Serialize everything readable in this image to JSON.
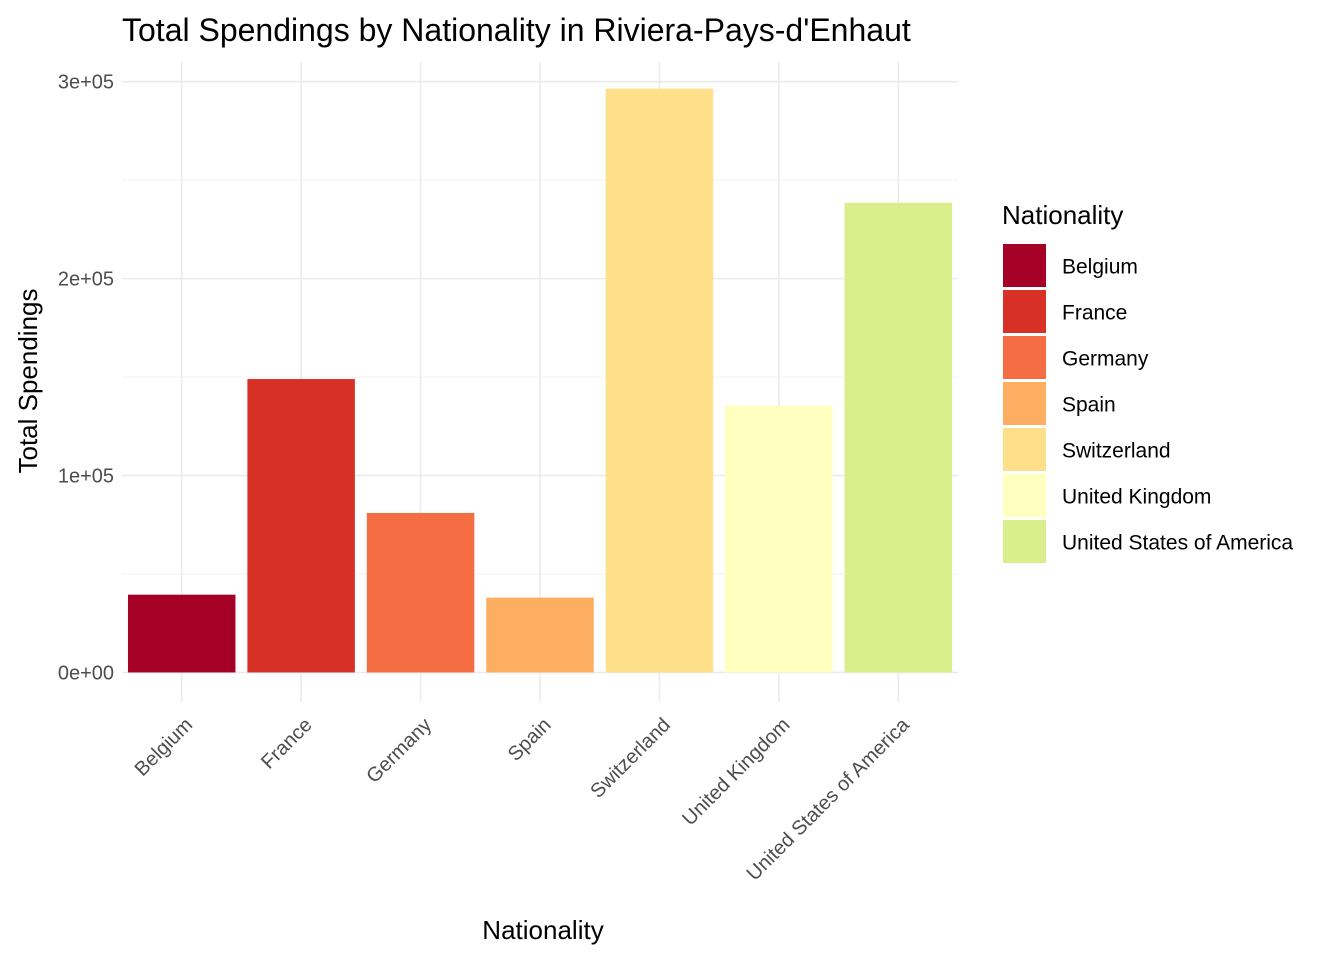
{
  "chart_data": {
    "type": "bar",
    "title": "Total Spendings by Nationality in Riviera-Pays-d'Enhaut",
    "xlabel": "Nationality",
    "ylabel": "Total Spendings",
    "categories": [
      "Belgium",
      "France",
      "Germany",
      "Spain",
      "Switzerland",
      "United Kingdom",
      "United States of America"
    ],
    "values": [
      39500,
      149000,
      81000,
      38000,
      296500,
      135500,
      238500
    ],
    "colors": [
      "#a50026",
      "#d73027",
      "#f46d43",
      "#fdae61",
      "#fee08b",
      "#ffffbf",
      "#d9ef8b"
    ],
    "ylim": [
      -15000,
      310000
    ],
    "yticks": [
      0,
      100000,
      200000,
      300000
    ],
    "ytick_labels": [
      "0e+00",
      "1e+05",
      "2e+05",
      "3e+05"
    ],
    "grid": true,
    "legend": {
      "title": "Nationality",
      "position": "right",
      "entries": [
        "Belgium",
        "France",
        "Germany",
        "Spain",
        "Switzerland",
        "United Kingdom",
        "United States of America"
      ]
    }
  }
}
